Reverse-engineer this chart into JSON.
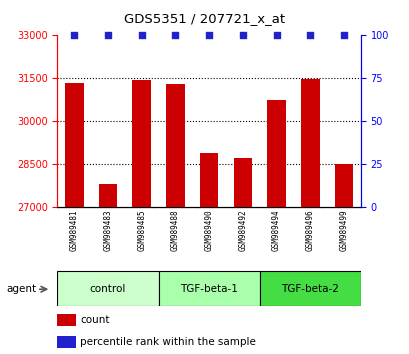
{
  "title": "GDS5351 / 207721_x_at",
  "samples": [
    "GSM989481",
    "GSM989483",
    "GSM989485",
    "GSM989488",
    "GSM989490",
    "GSM989492",
    "GSM989494",
    "GSM989496",
    "GSM989499"
  ],
  "bar_values": [
    31350,
    27800,
    31450,
    31300,
    28900,
    28700,
    30750,
    31480,
    28500
  ],
  "percentile_values": [
    100,
    100,
    100,
    100,
    100,
    100,
    100,
    100,
    100
  ],
  "ylim_left": [
    27000,
    33000
  ],
  "ylim_right": [
    0,
    100
  ],
  "yticks_left": [
    27000,
    28500,
    30000,
    31500,
    33000
  ],
  "yticks_right": [
    0,
    25,
    50,
    75,
    100
  ],
  "bar_color": "#cc0000",
  "percentile_color": "#2222cc",
  "groups": [
    {
      "label": "control",
      "color": "#ccffcc",
      "size": 3
    },
    {
      "label": "TGF-beta-1",
      "color": "#aaffaa",
      "size": 3
    },
    {
      "label": "TGF-beta-2",
      "color": "#44dd44",
      "size": 3
    }
  ],
  "agent_label": "agent",
  "legend_count_label": "count",
  "legend_percentile_label": "percentile rank within the sample",
  "bar_width": 0.55,
  "plot_bg": "#ffffff",
  "xlabel_bg": "#cccccc"
}
